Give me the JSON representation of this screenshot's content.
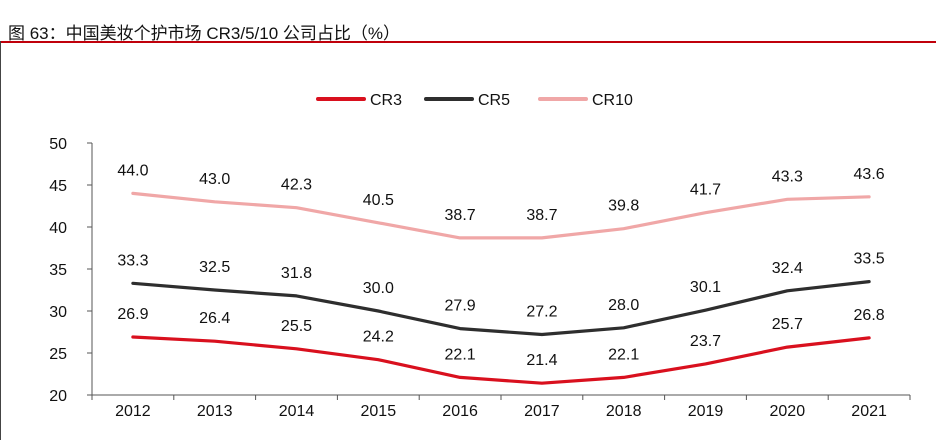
{
  "caption": "图 63：中国美妆个护市场 CR3/5/10 公司占比（%）",
  "chart_data": {
    "type": "line",
    "title": "",
    "xlabel": "",
    "ylabel": "",
    "categories": [
      "2012",
      "2013",
      "2014",
      "2015",
      "2016",
      "2017",
      "2018",
      "2019",
      "2020",
      "2021"
    ],
    "ylim": [
      20,
      50
    ],
    "yticks": [
      20,
      25,
      30,
      35,
      40,
      45,
      50
    ],
    "grid": false,
    "legend_position": "top-center",
    "series": [
      {
        "name": "CR3",
        "color": "#d9101e",
        "values": [
          26.9,
          26.4,
          25.5,
          24.2,
          22.1,
          21.4,
          22.1,
          23.7,
          25.7,
          26.8
        ]
      },
      {
        "name": "CR5",
        "color": "#2e2e2e",
        "values": [
          33.3,
          32.5,
          31.8,
          30.0,
          27.9,
          27.2,
          28.0,
          30.1,
          32.4,
          33.5
        ]
      },
      {
        "name": "CR10",
        "color": "#f0a7a7",
        "values": [
          44.0,
          43.0,
          42.3,
          40.5,
          38.7,
          38.7,
          39.8,
          41.7,
          43.3,
          43.6
        ]
      }
    ]
  }
}
